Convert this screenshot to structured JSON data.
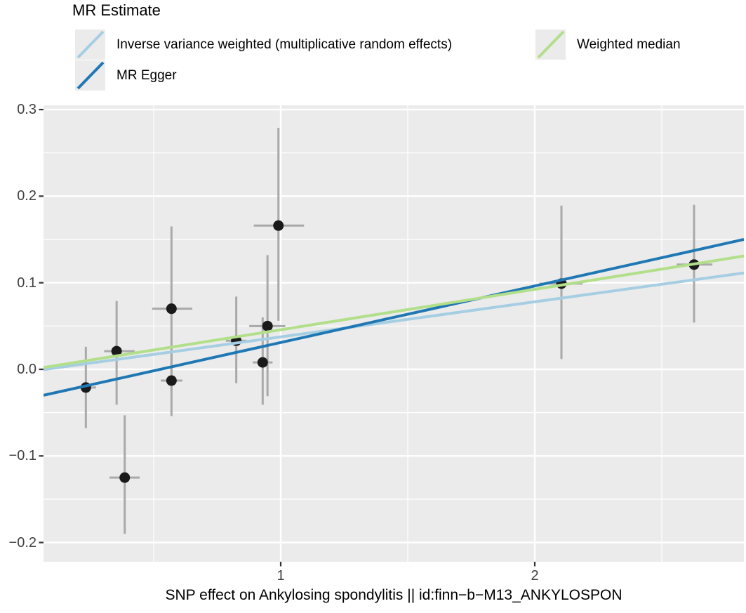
{
  "legend": {
    "title": "MR Estimate",
    "entries": [
      {
        "label": "Inverse variance weighted (multiplicative random effects)",
        "color": "#a6cee3"
      },
      {
        "label": "MR Egger",
        "color": "#1f78b4"
      },
      {
        "label": "Weighted median",
        "color": "#b2df8a"
      }
    ]
  },
  "axis": {
    "x_title": "SNP effect on Ankylosing spondylitis || id:finn−b−M13_ANKYLOSPON"
  },
  "chart_data": {
    "type": "scatter",
    "title": "MR Estimate",
    "xlabel": "SNP effect on Ankylosing spondylitis || id:finn−b−M13_ANKYLOSPON",
    "ylabel": "",
    "xlim": [
      0.0663,
      2.8232
    ],
    "ylim": [
      -0.2222,
      0.3049
    ],
    "x_ticks": [
      {
        "label": "1",
        "value": 1
      },
      {
        "label": "2",
        "value": 2
      }
    ],
    "y_ticks": [
      {
        "label": "0.3",
        "value": 0.3
      },
      {
        "label": "0.2",
        "value": 0.2
      },
      {
        "label": "0.1",
        "value": 0.1
      },
      {
        "label": "0.0",
        "value": 0.0
      },
      {
        "label": "−0.1",
        "value": -0.1
      },
      {
        "label": "−0.2",
        "value": -0.2
      }
    ],
    "x_minor_ticks": [
      0.5,
      1.5,
      2.5
    ],
    "y_minor_ticks": [
      0.25,
      0.15,
      0.05,
      -0.05,
      -0.15
    ],
    "grid": true,
    "legend_position": "top-left",
    "points": [
      {
        "x": 0.233,
        "xlo": 0.194,
        "xhi": 0.273,
        "y": -0.021,
        "ylo": -0.068,
        "yhi": 0.026
      },
      {
        "x": 0.354,
        "xlo": 0.305,
        "xhi": 0.425,
        "y": 0.021,
        "ylo": -0.041,
        "yhi": 0.079
      },
      {
        "x": 0.386,
        "xlo": 0.326,
        "xhi": 0.445,
        "y": -0.125,
        "ylo": -0.19,
        "yhi": -0.053
      },
      {
        "x": 0.57,
        "xlo": 0.494,
        "xhi": 0.652,
        "y": 0.07,
        "ylo": -0.025,
        "yhi": 0.165
      },
      {
        "x": 0.57,
        "xlo": 0.528,
        "xhi": 0.613,
        "y": -0.013,
        "ylo": -0.054,
        "yhi": 0.028
      },
      {
        "x": 0.825,
        "xlo": 0.784,
        "xhi": 0.866,
        "y": 0.033,
        "ylo": -0.016,
        "yhi": 0.084
      },
      {
        "x": 0.929,
        "xlo": 0.89,
        "xhi": 0.968,
        "y": 0.008,
        "ylo": -0.041,
        "yhi": 0.06
      },
      {
        "x": 0.948,
        "xlo": 0.876,
        "xhi": 1.018,
        "y": 0.05,
        "ylo": -0.031,
        "yhi": 0.132
      },
      {
        "x": 0.991,
        "xlo": 0.894,
        "xhi": 1.092,
        "y": 0.166,
        "ylo": 0.056,
        "yhi": 0.279
      },
      {
        "x": 2.105,
        "xlo": 2.018,
        "xhi": 2.188,
        "y": 0.099,
        "ylo": 0.012,
        "yhi": 0.189
      },
      {
        "x": 2.627,
        "xlo": 2.559,
        "xhi": 2.699,
        "y": 0.121,
        "ylo": 0.054,
        "yhi": 0.19
      }
    ],
    "series": [
      {
        "name": "Inverse variance weighted (multiplicative random effects)",
        "slope": 0.0405,
        "intercept": -0.003,
        "color": "#a6cee3"
      },
      {
        "name": "MR Egger",
        "slope": 0.0653,
        "intercept": -0.0343,
        "color": "#1f78b4"
      },
      {
        "name": "Weighted median",
        "slope": 0.0467,
        "intercept": -0.001,
        "color": "#b2df8a"
      }
    ],
    "colors": {
      "panel_bg": "#ebebeb",
      "grid": "#ffffff",
      "point": "#1a1a1a",
      "errorbar": "#a9a9a9",
      "tick_mark": "#333333"
    }
  }
}
